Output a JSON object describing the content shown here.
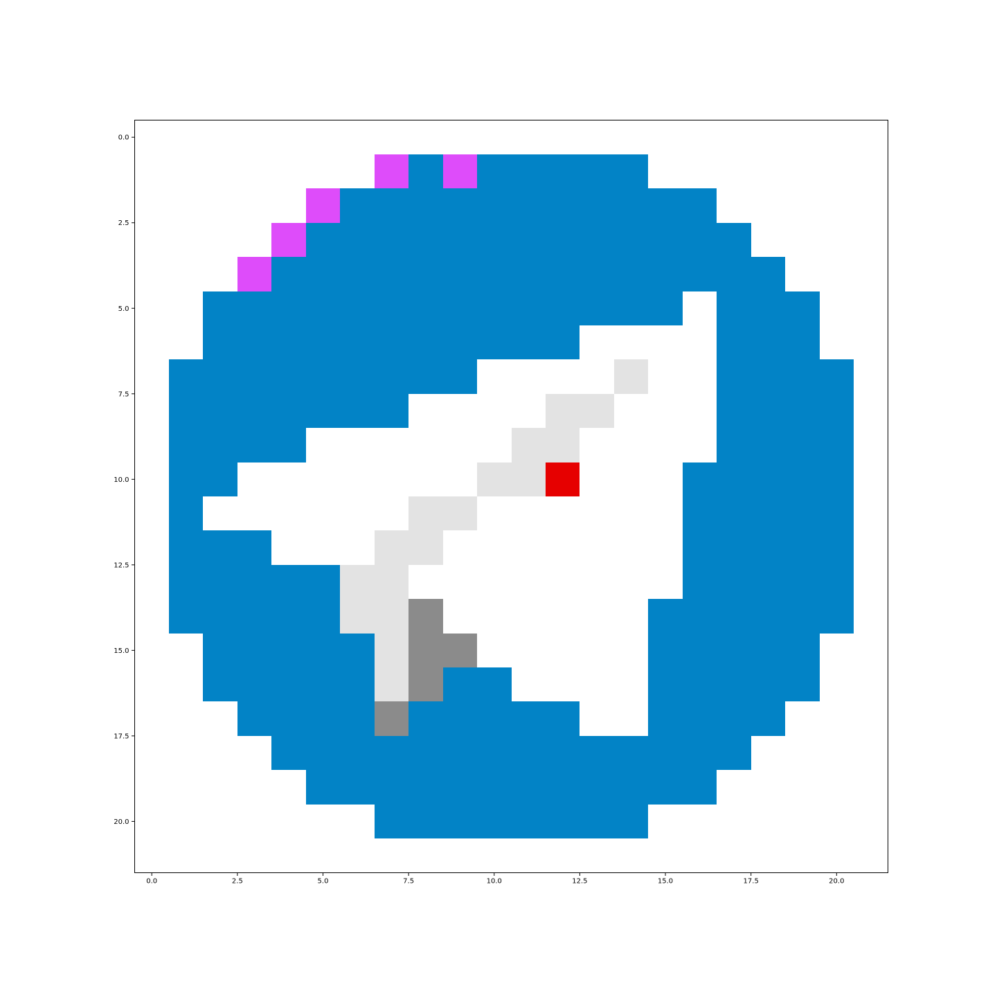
{
  "chart_data": {
    "type": "heatmap",
    "title": "",
    "xlabel": "",
    "ylabel": "",
    "xlim": [
      -0.5,
      21.5
    ],
    "ylim": [
      21.5,
      -0.5
    ],
    "y_axis_inverted": true,
    "grid": false,
    "xticks": [
      0.0,
      2.5,
      5.0,
      7.5,
      10.0,
      12.5,
      15.0,
      17.5,
      20.0
    ],
    "xtick_labels": [
      "0.0",
      "2.5",
      "5.0",
      "7.5",
      "10.0",
      "12.5",
      "15.0",
      "17.5",
      "20.0"
    ],
    "yticks": [
      0.0,
      2.5,
      5.0,
      7.5,
      10.0,
      12.5,
      15.0,
      17.5,
      20.0
    ],
    "ytick_labels": [
      "0.0",
      "2.5",
      "5.0",
      "7.5",
      "10.0",
      "12.5",
      "15.0",
      "17.5",
      "20.0"
    ],
    "palette": {
      "W": "#ffffff",
      "B": "#0283c6",
      "P": "#de4cfa",
      "L": "#e3e3e3",
      "G": "#8b8b8b",
      "R": "#e60000"
    },
    "rows": [
      "WWWWWWWWWWWWWWWWWWWWW",
      "WWWWWWWPBPBBBBBWWWWWW",
      "WWWWWPBBBBBBBBBBBWWWW",
      "WWWWPBBBBBBBBBBBBBWWW",
      "WWWPBBBBBBBBBBBBBBBWW",
      "WWBBBBBBBBBBBBBBWBBBW",
      "WWBBBBBBBBBBBWWWWBBBW",
      "WBBBBBBBBBWWWWLWWBBBB",
      "WBBBBBBBWWWWLLWWWBBBB",
      "WBBBBWWWWWWLLWWWWBBBB",
      "WBBWWWWWWWLLRWWWBBBBB",
      "WBWWWWWWLLWWWWWWBBBBB",
      "WBBBWWWLLWWWWWWWBBBBB",
      "WBBBBBLLWWWWWWWWBBBBB",
      "WBBBBBLLGWWWWWWBBBBBB",
      "WWBBBBBLGGWWWWWBBBBBW",
      "WWBBBBBLGBBWWWWBBBBBW",
      "WWWBBBBGBBBBBWWBBBBWW",
      "WWWWBBBBBBBBBBBBBBWWW",
      "WWWWWBBBBBBBBBBBBWWWW",
      "WWWWWWWBBBBBBBBWWWWWW",
      "WWWWWWWWWWWWWWWWWWWWW"
    ]
  }
}
